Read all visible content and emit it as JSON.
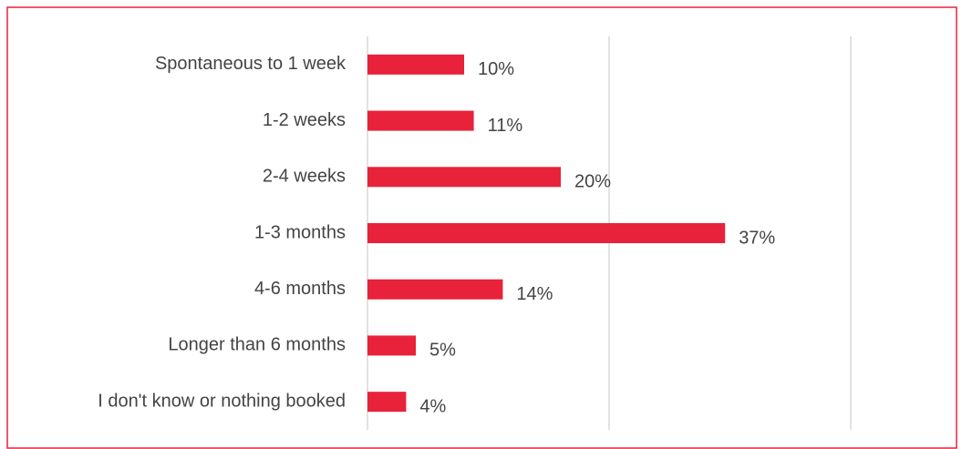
{
  "chart_data": {
    "type": "barh",
    "categories": [
      "Spontaneous to 1 week",
      "1-2 weeks",
      "2-4 weeks",
      "1-3 months",
      "4-6 months",
      "Longer than 6 months",
      "I don't know or nothing booked"
    ],
    "values": [
      10,
      11,
      20,
      37,
      14,
      5,
      4
    ],
    "value_labels": [
      "10%",
      "11%",
      "20%",
      "37%",
      "14%",
      "5%",
      "4%"
    ],
    "color": "#e8223a",
    "xlim": [
      0,
      50
    ],
    "xticks": [
      0,
      25,
      50
    ],
    "grid": true
  }
}
